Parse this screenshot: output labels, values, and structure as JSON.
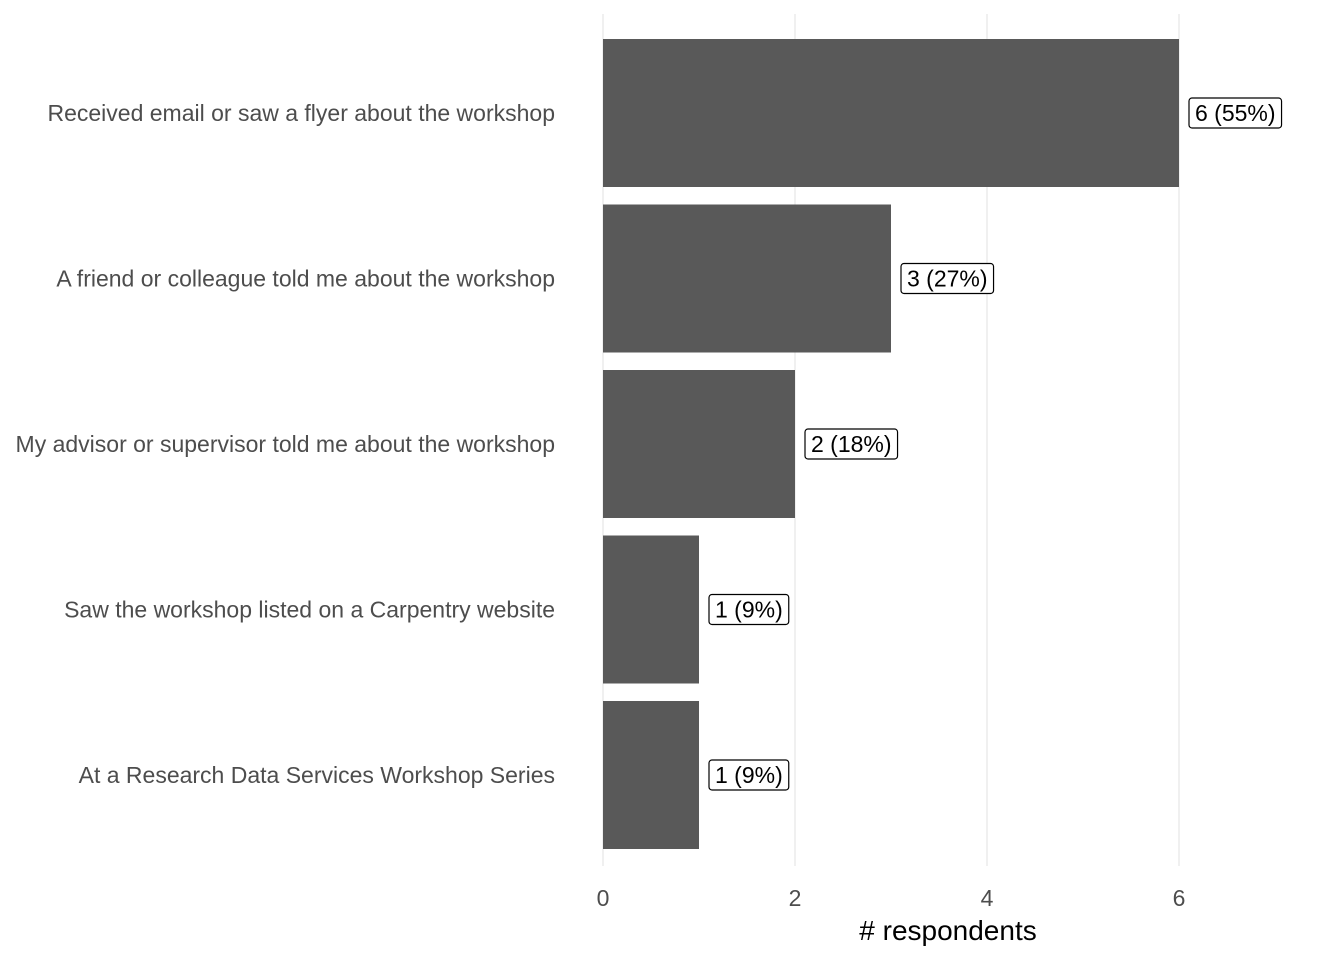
{
  "chart_data": {
    "type": "bar",
    "orientation": "horizontal",
    "categories": [
      "Received email or saw a flyer about the workshop",
      "A friend or colleague told me about the workshop",
      "My advisor or supervisor told me about the workshop",
      "Saw the workshop listed on a Carpentry website",
      "At a Research Data Services Workshop Series"
    ],
    "values": [
      6,
      3,
      2,
      1,
      1
    ],
    "data_labels": [
      "6 (55%)",
      "3 (27%)",
      "2 (18%)",
      "1 (9%)",
      "1 (9%)"
    ],
    "title": "",
    "xlabel": "# respondents",
    "ylabel": "",
    "xlim": [
      0,
      7
    ],
    "x_ticks": [
      "0",
      "2",
      "4",
      "6"
    ],
    "grid": true,
    "legend": "none",
    "bar_color": "#595959"
  }
}
